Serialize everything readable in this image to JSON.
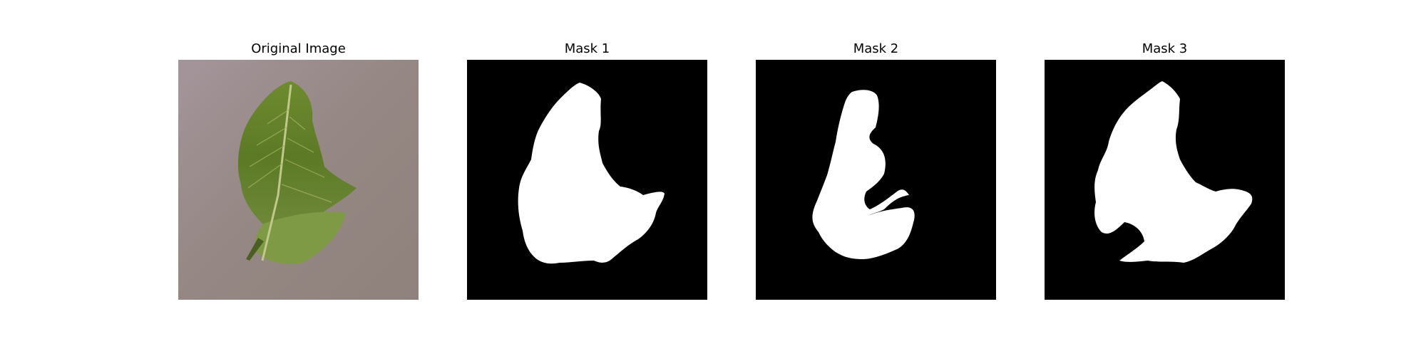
{
  "figure": {
    "panels": [
      {
        "title": "Original Image",
        "kind": "photo",
        "subject": "leaf-on-fabric"
      },
      {
        "title": "Mask 1",
        "kind": "binary-mask"
      },
      {
        "title": "Mask 2",
        "kind": "binary-mask"
      },
      {
        "title": "Mask 3",
        "kind": "binary-mask"
      }
    ]
  },
  "colors": {
    "background": "#ffffff",
    "mask_bg": "#000000",
    "mask_fg": "#ffffff",
    "fabric": "#9a8c88",
    "leaf_dark": "#4f6b23",
    "leaf_mid": "#6e8a32",
    "leaf_light": "#a9b66a"
  }
}
